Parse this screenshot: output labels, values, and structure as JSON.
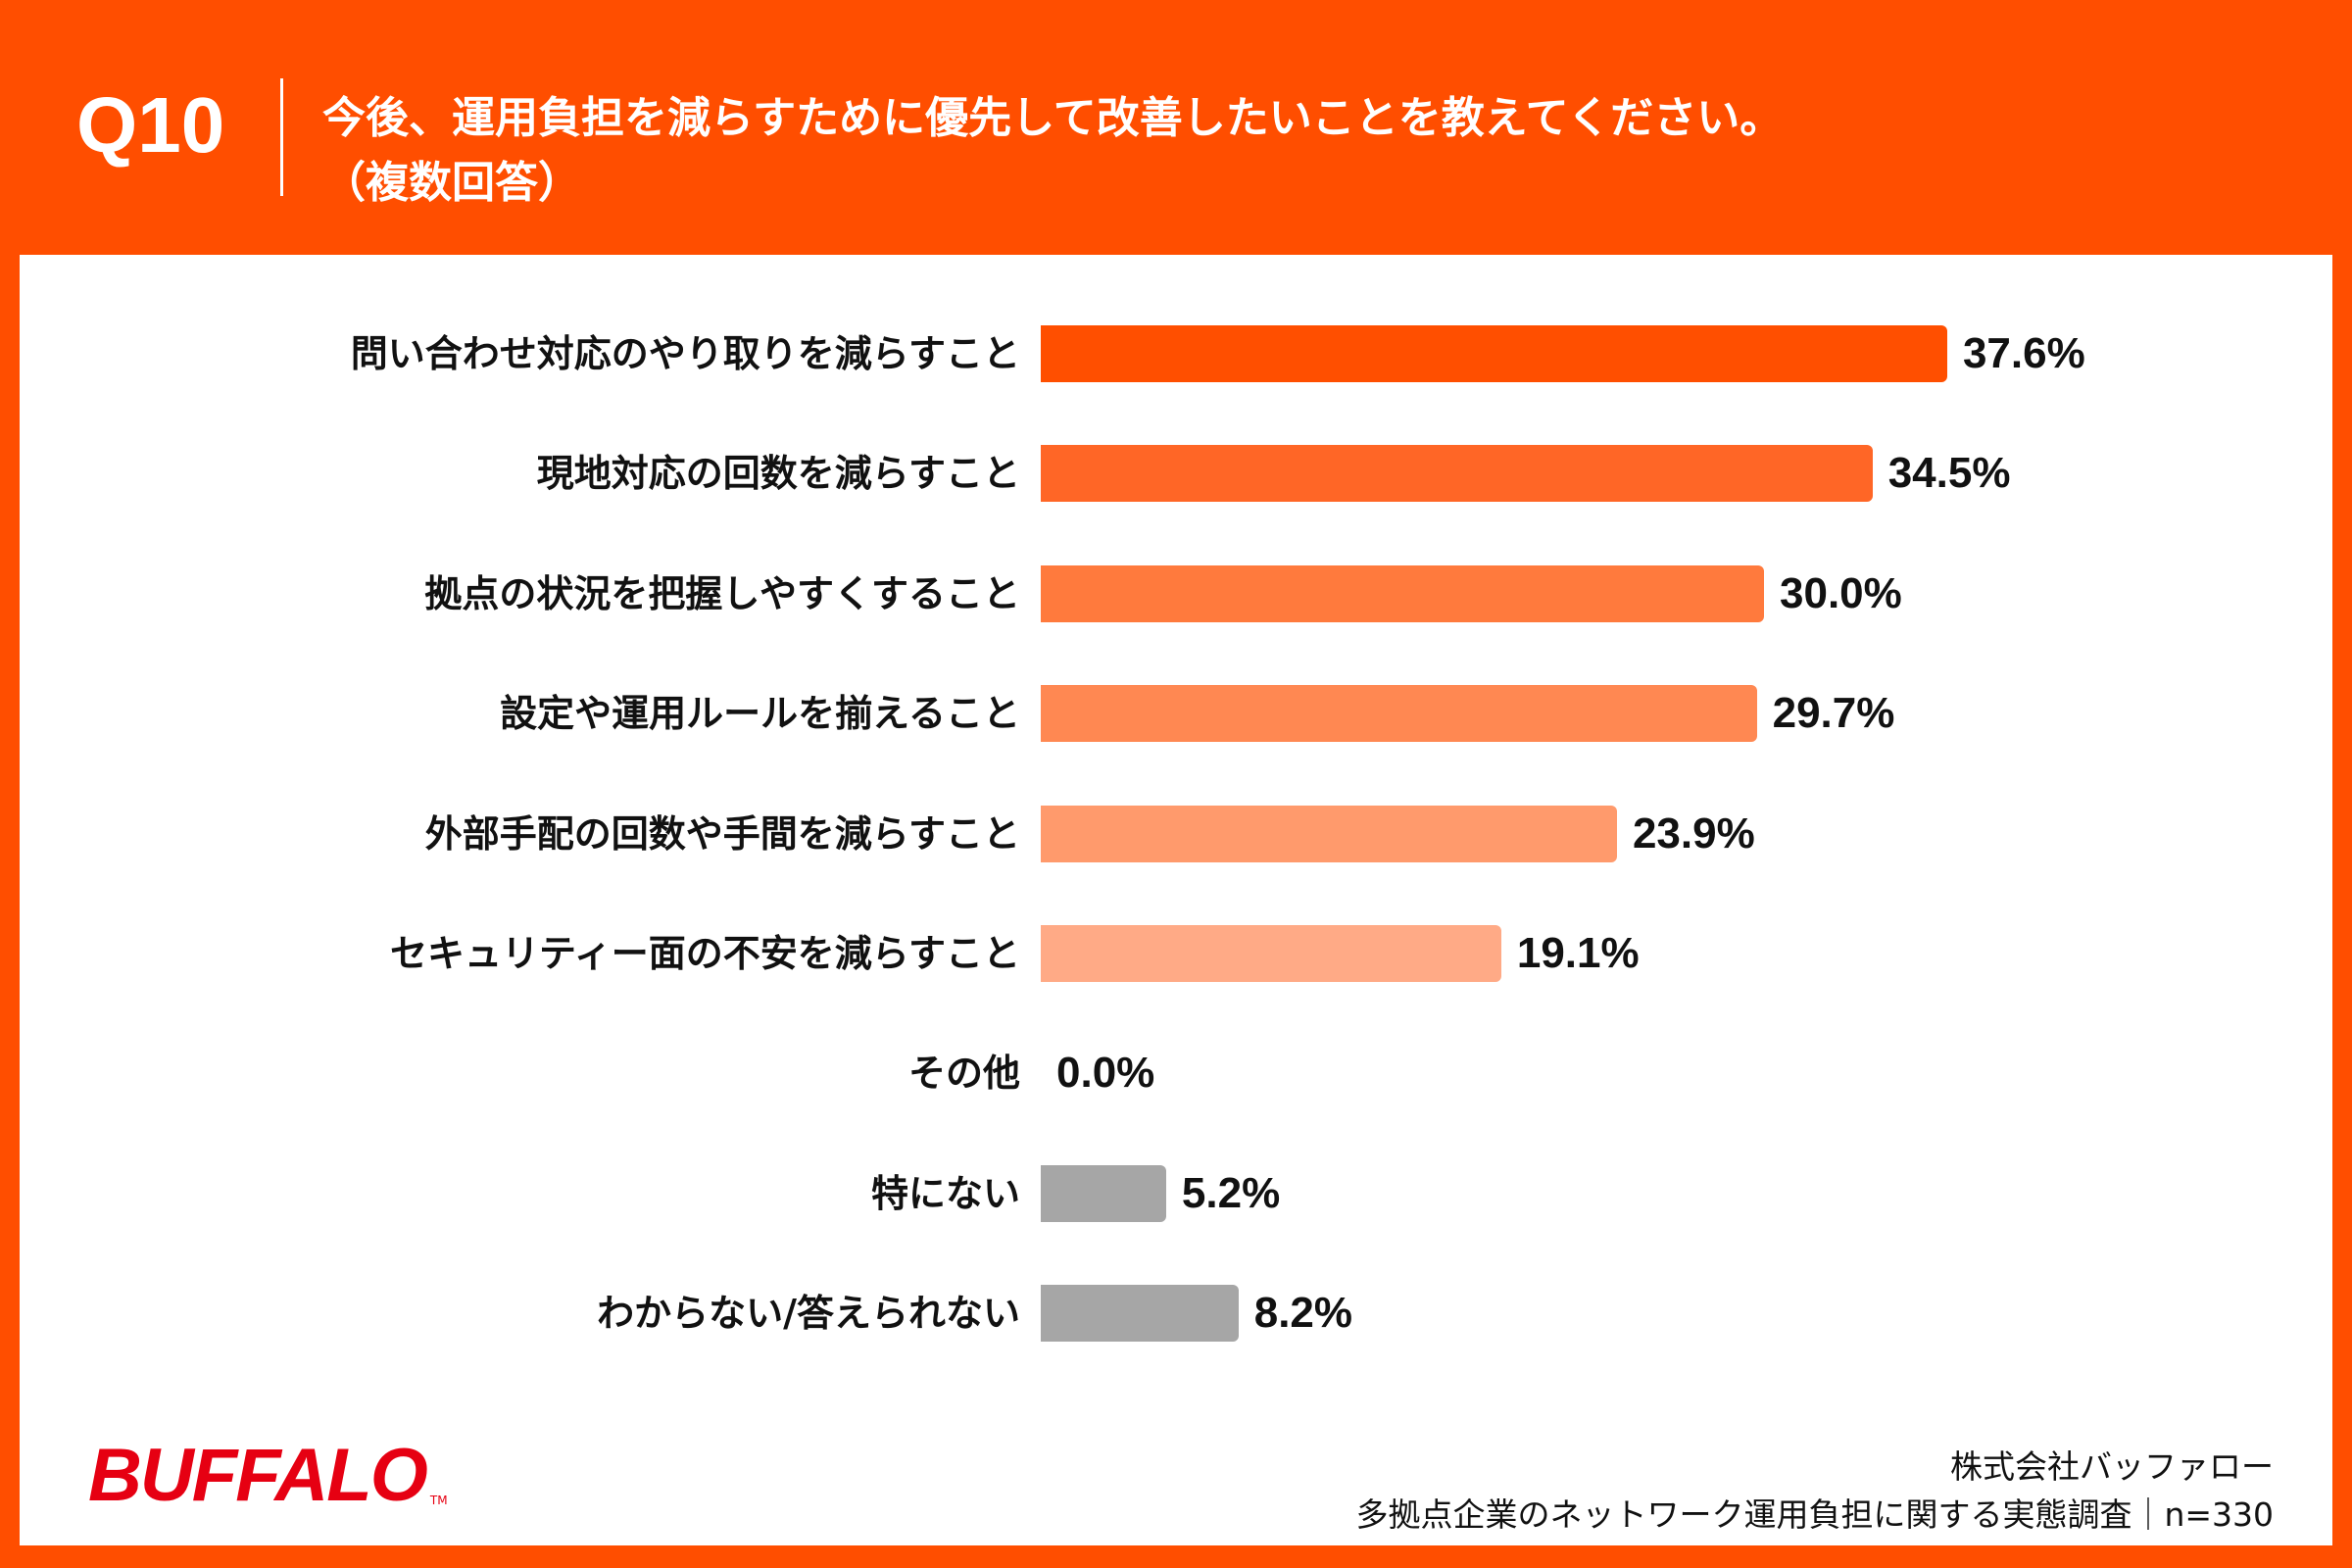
{
  "header": {
    "question_number": "Q10",
    "title_line1": "今後、運用負担を減らすために優先して改善したいことを教えてください。",
    "title_line2": "（複数回答）"
  },
  "chart_data": {
    "type": "bar",
    "orientation": "horizontal",
    "categories": [
      "問い合わせ対応のやり取りを減らすこと",
      "現地対応の回数を減らすこと",
      "拠点の状況を把握しやすくすること",
      "設定や運用ルールを揃えること",
      "外部手配の回数や手間を減らすこと",
      "セキュリティー面の不安を減らすこと",
      "その他",
      "特にない",
      "わからない/答えられない"
    ],
    "values": [
      37.6,
      34.5,
      30.0,
      29.7,
      23.9,
      19.1,
      0.0,
      5.2,
      8.2
    ],
    "value_labels": [
      "37.6%",
      "34.5%",
      "30.0%",
      "29.7%",
      "23.9%",
      "19.1%",
      "0.0%",
      "5.2%",
      "8.2%"
    ],
    "unit": "%",
    "colors": [
      "#FF4F00",
      "#FF6626",
      "#FF7A3D",
      "#FF8852",
      "#FF9A6C",
      "#FFAA86",
      "#A6A6A6",
      "#A6A6A6",
      "#A6A6A6"
    ],
    "grid": false,
    "legend": "none"
  },
  "footer": {
    "logo": "BUFFALO",
    "logo_tm": "TM",
    "company": "株式会社バッファロー",
    "survey": "多拠点企業のネットワーク運用負担に関する実態調査｜n=330"
  },
  "colors": {
    "background": "#FF4E00",
    "panel": "#FFFFFF",
    "logo": "#E60012"
  }
}
